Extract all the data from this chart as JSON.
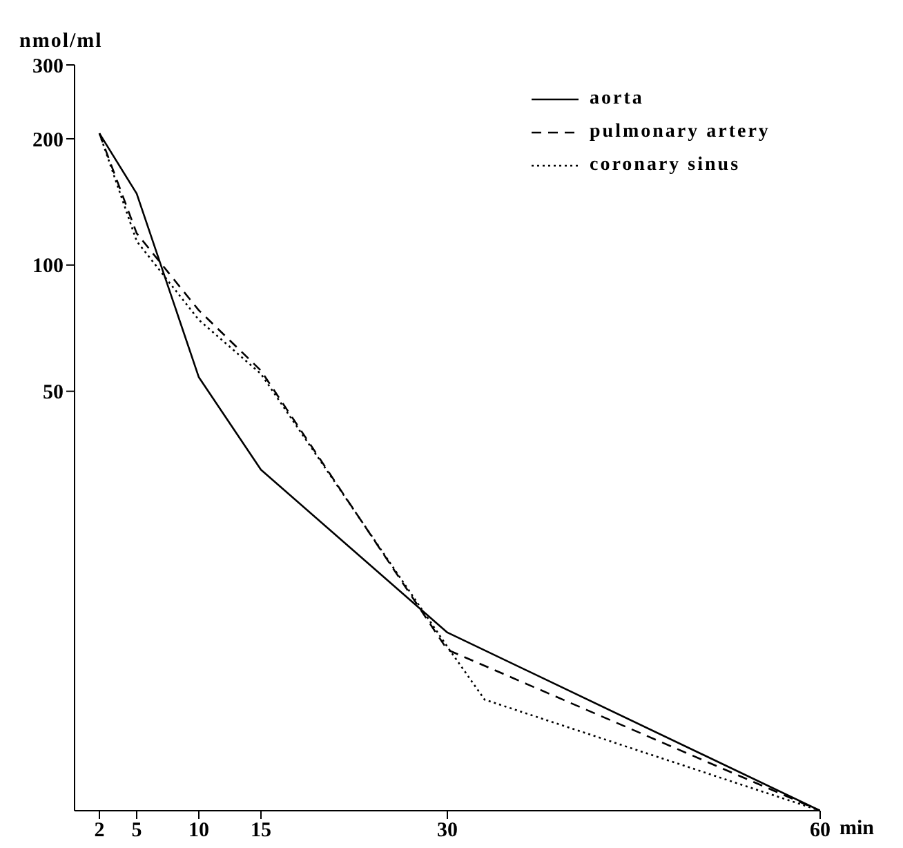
{
  "chart_data": {
    "type": "line",
    "ylabel": "nmol/ml",
    "xlabel": "min",
    "log": "y",
    "xlim": [
      0,
      60
    ],
    "xticks": [
      2,
      5,
      10,
      15,
      30,
      60
    ],
    "ylim": [
      5,
      300
    ],
    "yticks": [
      50,
      100,
      200,
      300
    ],
    "legend": "top right",
    "marker": "none",
    "series": [
      {
        "name": "aorta",
        "color": "#000000",
        "line_style": "solid",
        "x": [
          2,
          5,
          10,
          15,
          30,
          60
        ],
        "values": [
          206,
          148,
          54,
          32.5,
          13.3,
          5
        ]
      },
      {
        "name": "pulmonary artery",
        "color": "#000000",
        "line_style": "dashed",
        "x": [
          2,
          5,
          10,
          15,
          30,
          60
        ],
        "values": [
          206,
          119,
          78,
          56,
          12.1,
          5
        ]
      },
      {
        "name": "coronary sinus",
        "color": "#000000",
        "line_style": "dotted",
        "x": [
          2,
          5,
          10,
          15,
          30,
          33,
          60
        ],
        "values": [
          206,
          114,
          74,
          55,
          12.3,
          9.2,
          5
        ]
      }
    ]
  }
}
